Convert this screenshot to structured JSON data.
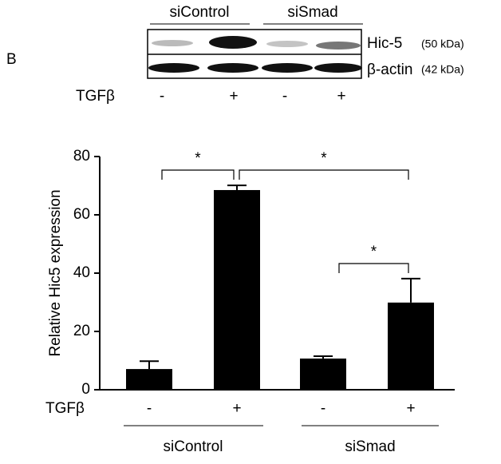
{
  "panel_label": "B",
  "blot": {
    "groups": [
      "siControl",
      "siSmad"
    ],
    "rows": [
      {
        "name": "Hic-5",
        "size": "(50 kDa)"
      },
      {
        "name": "β-actin",
        "size": "(42 kDa)"
      }
    ],
    "treatment_label": "TGFβ",
    "lanes": [
      "-",
      "+",
      "-",
      "+"
    ]
  },
  "chart_data": {
    "type": "bar",
    "y_label": "Relative Hic5 expression",
    "x_label": "TGFβ",
    "categories": [
      "-",
      "+",
      "-",
      "+"
    ],
    "groups": [
      "siControl",
      "siSmad"
    ],
    "values": [
      7.1,
      68.5,
      10.7,
      29.9
    ],
    "errors": [
      2.7,
      1.6,
      0.8,
      8.2
    ],
    "color": "#000000",
    "ylim": [
      0,
      80
    ],
    "yticks": [
      0,
      20,
      40,
      60,
      80
    ],
    "annotations": [
      "*",
      "*",
      "*"
    ]
  }
}
